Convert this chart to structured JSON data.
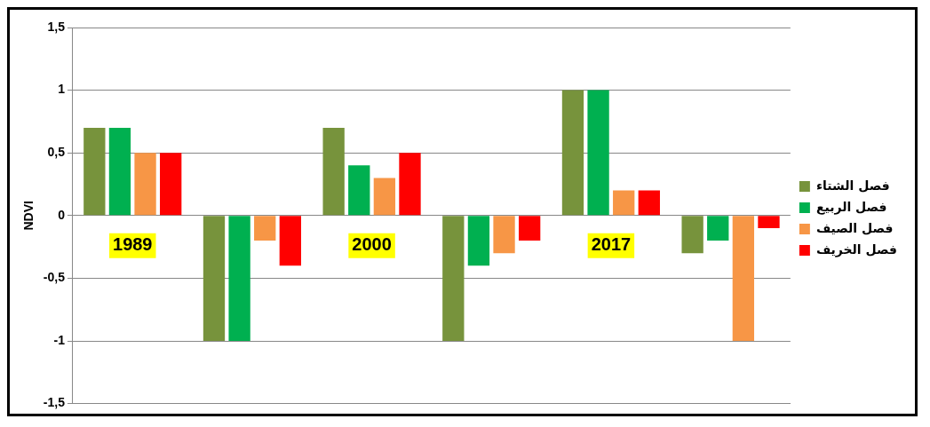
{
  "chart_data": {
    "type": "bar",
    "categories": [
      "1989",
      null,
      "2000",
      null,
      "2017",
      null
    ],
    "ylabel": "NDVI",
    "ylim": [
      -1.5,
      1.5
    ],
    "yticks": [
      {
        "value": -1.5,
        "label": "-1,5"
      },
      {
        "value": -1,
        "label": "-1"
      },
      {
        "value": -0.5,
        "label": "-0,5"
      },
      {
        "value": 0,
        "label": "0"
      },
      {
        "value": 0.5,
        "label": "0,5"
      },
      {
        "value": 1,
        "label": "1"
      },
      {
        "value": 1.5,
        "label": "1,5"
      }
    ],
    "grid": "y",
    "legend": "right",
    "series": [
      {
        "name": "فصل الشتاء",
        "color": "#77933c",
        "values": [
          0.7,
          -1,
          0.7,
          -1,
          1,
          -0.3
        ]
      },
      {
        "name": "فصل الربيع",
        "color": "#00b050",
        "values": [
          0.7,
          -1,
          0.4,
          -0.4,
          1,
          -0.2
        ]
      },
      {
        "name": "فصل الصيف",
        "color": "#f79646",
        "values": [
          0.5,
          -0.2,
          0.3,
          -0.3,
          0.2,
          -1
        ]
      },
      {
        "name": "فصل الخريف",
        "color": "#ff0000",
        "values": [
          0.5,
          -0.4,
          0.5,
          -0.2,
          0.2,
          -0.1
        ]
      }
    ]
  }
}
